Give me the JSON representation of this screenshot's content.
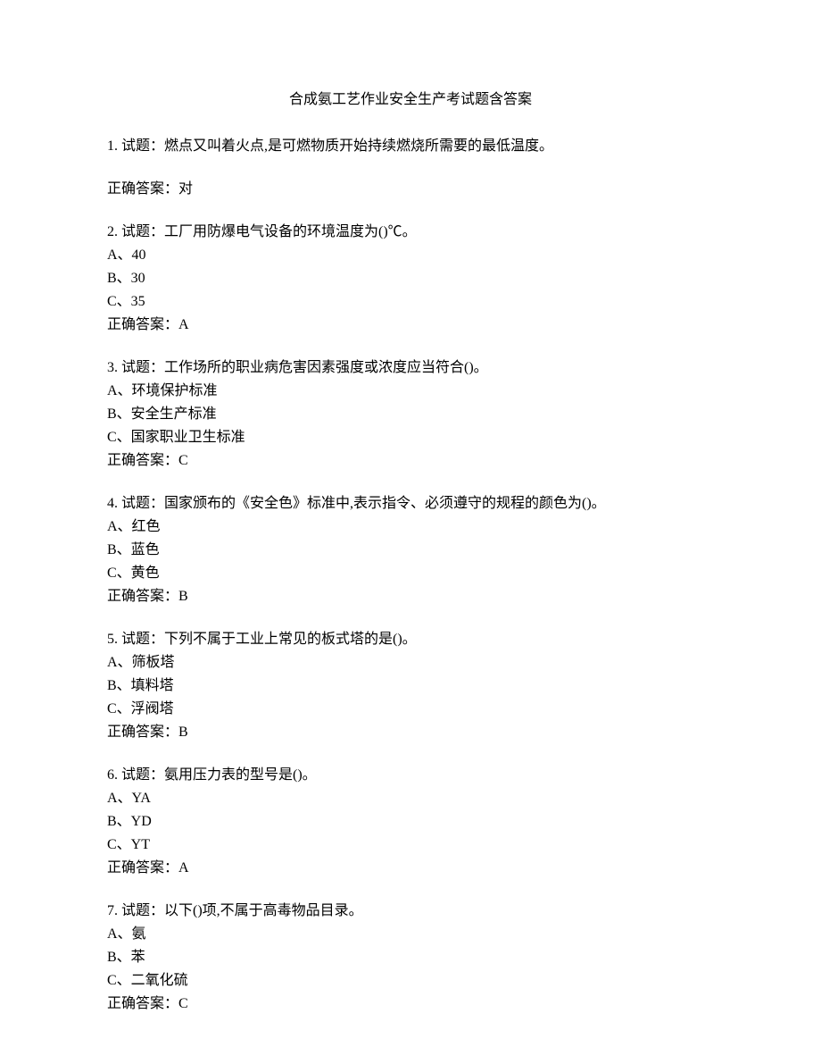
{
  "title": "合成氨工艺作业安全生产考试题含答案",
  "questions": [
    {
      "text": "1. 试题：燃点又叫着火点,是可燃物质开始持续燃烧所需要的最低温度。",
      "options": [],
      "answer": "正确答案：对",
      "spacerAfterText": true
    },
    {
      "text": "2. 试题：工厂用防爆电气设备的环境温度为()℃。",
      "options": [
        "A、40",
        "B、30",
        "C、35"
      ],
      "answer": "正确答案：A"
    },
    {
      "text": "3. 试题：工作场所的职业病危害因素强度或浓度应当符合()。",
      "options": [
        "A、环境保护标准",
        "B、安全生产标准",
        "C、国家职业卫生标准"
      ],
      "answer": "正确答案：C"
    },
    {
      "text": "4. 试题：国家颁布的《安全色》标准中,表示指令、必须遵守的规程的颜色为()。",
      "options": [
        "A、红色",
        "B、蓝色",
        "C、黄色"
      ],
      "answer": "正确答案：B"
    },
    {
      "text": "5. 试题：下列不属于工业上常见的板式塔的是()。",
      "options": [
        "A、筛板塔",
        "B、填料塔",
        "C、浮阀塔"
      ],
      "answer": "正确答案：B"
    },
    {
      "text": "6. 试题：氨用压力表的型号是()。",
      "options": [
        "A、YA",
        "B、YD",
        "C、YT"
      ],
      "answer": "正确答案：A"
    },
    {
      "text": "7. 试题：以下()项,不属于高毒物品目录。",
      "options": [
        "A、氨",
        "B、苯",
        "C、二氧化硫"
      ],
      "answer": "正确答案：C"
    }
  ]
}
